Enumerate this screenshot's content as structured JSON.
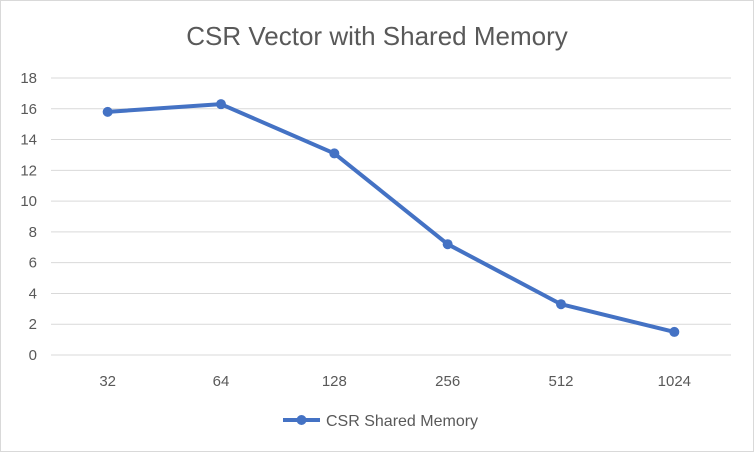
{
  "chart_data": {
    "type": "line",
    "title": "CSR Vector with Shared Memory",
    "categories": [
      "32",
      "64",
      "128",
      "256",
      "512",
      "1024"
    ],
    "series": [
      {
        "name": "CSR Shared Memory",
        "values": [
          15.8,
          16.3,
          13.1,
          7.2,
          3.3,
          1.5
        ]
      }
    ],
    "ylim": [
      0,
      18
    ],
    "yticks": [
      0,
      2,
      4,
      6,
      8,
      10,
      12,
      14,
      16,
      18
    ],
    "grid": true,
    "legend": "bottom",
    "colors": {
      "series": "#4472c4",
      "grid": "#d9d9d9",
      "text": "#595959"
    }
  }
}
